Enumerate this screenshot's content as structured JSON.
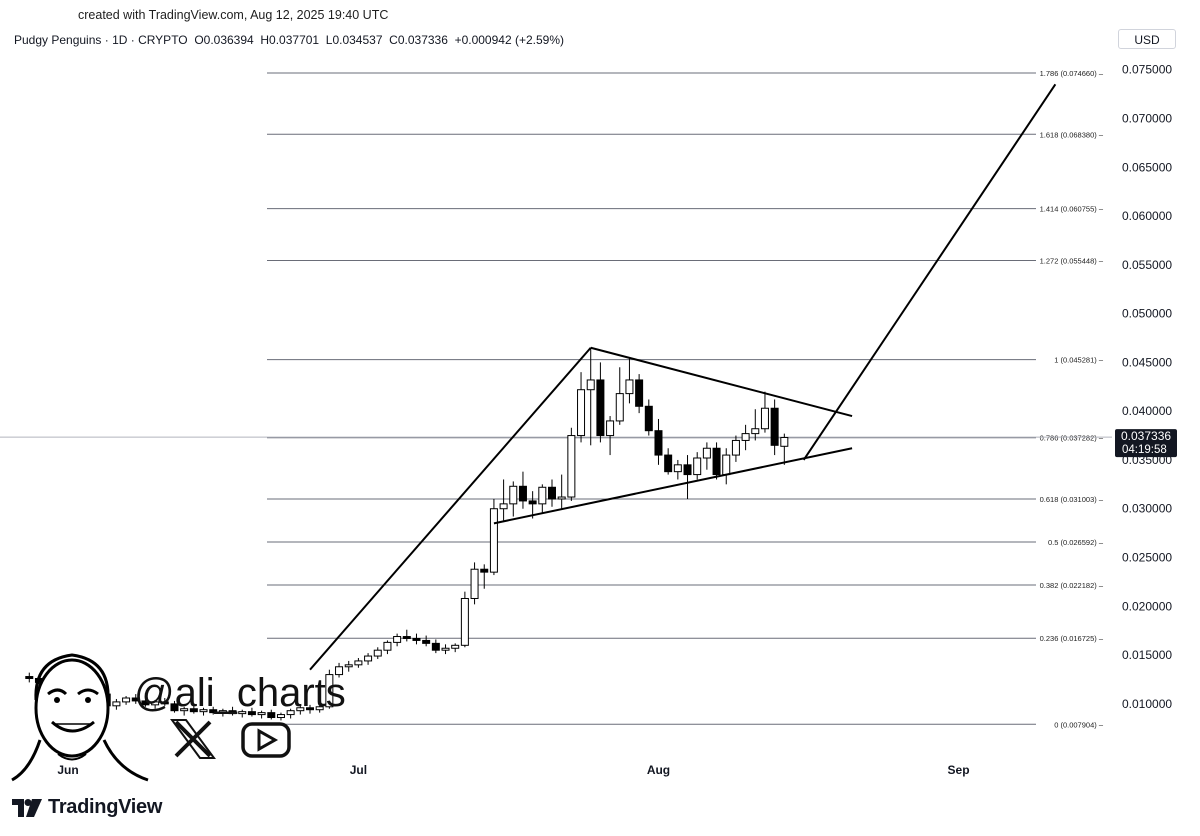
{
  "watermark": {
    "created": "created with TradingView.com, Aug 12, 2025 19:40 UTC"
  },
  "header": {
    "symbol": "Pudgy Penguins · 1D · CRYPTO",
    "open": "O0.036394",
    "high": "H0.037701",
    "low": "L0.034537",
    "close": "C0.037336",
    "change": "+0.000942 (+2.59%)"
  },
  "currency": "USD",
  "price_badge": {
    "price": "0.037336",
    "countdown": "04:19:58",
    "color": "#131722"
  },
  "author": {
    "handle": "@ali_charts"
  },
  "brand": {
    "name": "TradingView"
  },
  "colors": {
    "up": "#ffffff",
    "down": "#000000",
    "lines": "#000000",
    "grid": "#000000"
  },
  "chart_data": {
    "type": "candlestick",
    "title": "Pudgy Penguins · 1D · CRYPTO",
    "x_ticks": [
      "Jun",
      "Jul",
      "Aug",
      "Sep"
    ],
    "y_ticks": [
      "0.075000",
      "0.070000",
      "0.065000",
      "0.060000",
      "0.055000",
      "0.050000",
      "0.045000",
      "0.040000",
      "0.035000",
      "0.030000",
      "0.025000",
      "0.020000",
      "0.015000",
      "0.010000"
    ],
    "ylim": [
      0.0065,
      0.0762
    ],
    "fib_levels": [
      {
        "ratio": "1.786",
        "label": "1.786 (0.074660)",
        "value": 0.07466
      },
      {
        "ratio": "1.618",
        "label": "1.618 (0.068380)",
        "value": 0.06838
      },
      {
        "ratio": "1.414",
        "label": "1.414 (0.060755)",
        "value": 0.060755
      },
      {
        "ratio": "1.272",
        "label": "1.272 (0.055448)",
        "value": 0.055448
      },
      {
        "ratio": "1",
        "label": "1 (0.045281)",
        "value": 0.045281
      },
      {
        "ratio": "0.786",
        "label": "0.786 (0.037282)",
        "value": 0.037282
      },
      {
        "ratio": "0.618",
        "label": "0.618 (0.031003)",
        "value": 0.031003
      },
      {
        "ratio": "0.5",
        "label": "0.5 (0.026592)",
        "value": 0.026592
      },
      {
        "ratio": "0.382",
        "label": "0.382 (0.022182)",
        "value": 0.022182
      },
      {
        "ratio": "0.236",
        "label": "0.236 (0.016725)",
        "value": 0.016725
      },
      {
        "ratio": "0",
        "label": "0 (0.007904)",
        "value": 0.007904
      }
    ],
    "candles": [
      {
        "date": "2025-05-28",
        "o": 0.0128,
        "h": 0.0132,
        "l": 0.0122,
        "c": 0.0126
      },
      {
        "date": "2025-05-29",
        "o": 0.0126,
        "h": 0.013,
        "l": 0.012,
        "c": 0.0122
      },
      {
        "date": "2025-05-30",
        "o": 0.0122,
        "h": 0.0127,
        "l": 0.0118,
        "c": 0.0125
      },
      {
        "date": "2025-05-31",
        "o": 0.0125,
        "h": 0.0131,
        "l": 0.0121,
        "c": 0.0124
      },
      {
        "date": "2025-06-01",
        "o": 0.0124,
        "h": 0.0128,
        "l": 0.0116,
        "c": 0.0118
      },
      {
        "date": "2025-06-02",
        "o": 0.0118,
        "h": 0.0123,
        "l": 0.0113,
        "c": 0.0121
      },
      {
        "date": "2025-06-03",
        "o": 0.0121,
        "h": 0.0126,
        "l": 0.0115,
        "c": 0.0117
      },
      {
        "date": "2025-06-04",
        "o": 0.0117,
        "h": 0.0121,
        "l": 0.0107,
        "c": 0.011
      },
      {
        "date": "2025-06-05",
        "o": 0.011,
        "h": 0.0114,
        "l": 0.0096,
        "c": 0.0098
      },
      {
        "date": "2025-06-06",
        "o": 0.0098,
        "h": 0.0105,
        "l": 0.0094,
        "c": 0.0102
      },
      {
        "date": "2025-06-07",
        "o": 0.0102,
        "h": 0.0108,
        "l": 0.0099,
        "c": 0.0106
      },
      {
        "date": "2025-06-08",
        "o": 0.0106,
        "h": 0.011,
        "l": 0.01,
        "c": 0.0103
      },
      {
        "date": "2025-06-09",
        "o": 0.0103,
        "h": 0.0107,
        "l": 0.0097,
        "c": 0.0099
      },
      {
        "date": "2025-06-10",
        "o": 0.0099,
        "h": 0.0104,
        "l": 0.0095,
        "c": 0.0102
      },
      {
        "date": "2025-06-11",
        "o": 0.0102,
        "h": 0.0106,
        "l": 0.0098,
        "c": 0.01
      },
      {
        "date": "2025-06-12",
        "o": 0.01,
        "h": 0.0103,
        "l": 0.0091,
        "c": 0.0093
      },
      {
        "date": "2025-06-13",
        "o": 0.0093,
        "h": 0.0097,
        "l": 0.0088,
        "c": 0.0095
      },
      {
        "date": "2025-06-14",
        "o": 0.0095,
        "h": 0.0099,
        "l": 0.009,
        "c": 0.0092
      },
      {
        "date": "2025-06-15",
        "o": 0.0092,
        "h": 0.0096,
        "l": 0.0088,
        "c": 0.0094
      },
      {
        "date": "2025-06-16",
        "o": 0.0094,
        "h": 0.0097,
        "l": 0.0089,
        "c": 0.0091
      },
      {
        "date": "2025-06-17",
        "o": 0.0091,
        "h": 0.0095,
        "l": 0.0087,
        "c": 0.0093
      },
      {
        "date": "2025-06-18",
        "o": 0.0093,
        "h": 0.0097,
        "l": 0.0088,
        "c": 0.009
      },
      {
        "date": "2025-06-19",
        "o": 0.009,
        "h": 0.0094,
        "l": 0.0086,
        "c": 0.0092
      },
      {
        "date": "2025-06-20",
        "o": 0.0092,
        "h": 0.0096,
        "l": 0.0087,
        "c": 0.0089
      },
      {
        "date": "2025-06-21",
        "o": 0.0089,
        "h": 0.0093,
        "l": 0.0085,
        "c": 0.0091
      },
      {
        "date": "2025-06-22",
        "o": 0.0091,
        "h": 0.0094,
        "l": 0.0084,
        "c": 0.0086
      },
      {
        "date": "2025-06-23",
        "o": 0.0086,
        "h": 0.0091,
        "l": 0.0083,
        "c": 0.0089
      },
      {
        "date": "2025-06-24",
        "o": 0.0089,
        "h": 0.0095,
        "l": 0.0085,
        "c": 0.0093
      },
      {
        "date": "2025-06-25",
        "o": 0.0093,
        "h": 0.0098,
        "l": 0.0089,
        "c": 0.0096
      },
      {
        "date": "2025-06-26",
        "o": 0.0096,
        "h": 0.0099,
        "l": 0.009,
        "c": 0.0094
      },
      {
        "date": "2025-06-27",
        "o": 0.0094,
        "h": 0.0098,
        "l": 0.0091,
        "c": 0.0097
      },
      {
        "date": "2025-06-28",
        "o": 0.0097,
        "h": 0.0135,
        "l": 0.0095,
        "c": 0.013
      },
      {
        "date": "2025-06-29",
        "o": 0.013,
        "h": 0.0142,
        "l": 0.0127,
        "c": 0.0138
      },
      {
        "date": "2025-06-30",
        "o": 0.0138,
        "h": 0.0144,
        "l": 0.0133,
        "c": 0.014
      },
      {
        "date": "2025-07-01",
        "o": 0.014,
        "h": 0.0147,
        "l": 0.0137,
        "c": 0.0144
      },
      {
        "date": "2025-07-02",
        "o": 0.0144,
        "h": 0.0152,
        "l": 0.014,
        "c": 0.0149
      },
      {
        "date": "2025-07-03",
        "o": 0.0149,
        "h": 0.0158,
        "l": 0.0146,
        "c": 0.0155
      },
      {
        "date": "2025-07-04",
        "o": 0.0155,
        "h": 0.0165,
        "l": 0.0151,
        "c": 0.0163
      },
      {
        "date": "2025-07-05",
        "o": 0.0163,
        "h": 0.0172,
        "l": 0.0159,
        "c": 0.0169
      },
      {
        "date": "2025-07-06",
        "o": 0.0169,
        "h": 0.0176,
        "l": 0.0164,
        "c": 0.0167
      },
      {
        "date": "2025-07-07",
        "o": 0.0167,
        "h": 0.0172,
        "l": 0.0161,
        "c": 0.0165
      },
      {
        "date": "2025-07-08",
        "o": 0.0165,
        "h": 0.017,
        "l": 0.0159,
        "c": 0.0162
      },
      {
        "date": "2025-07-09",
        "o": 0.0162,
        "h": 0.0166,
        "l": 0.0152,
        "c": 0.0155
      },
      {
        "date": "2025-07-10",
        "o": 0.0155,
        "h": 0.0161,
        "l": 0.0151,
        "c": 0.0157
      },
      {
        "date": "2025-07-11",
        "o": 0.0157,
        "h": 0.0162,
        "l": 0.0153,
        "c": 0.016
      },
      {
        "date": "2025-07-12",
        "o": 0.016,
        "h": 0.0215,
        "l": 0.0158,
        "c": 0.0208
      },
      {
        "date": "2025-07-13",
        "o": 0.0208,
        "h": 0.0245,
        "l": 0.0202,
        "c": 0.0238
      },
      {
        "date": "2025-07-14",
        "o": 0.0238,
        "h": 0.0243,
        "l": 0.0218,
        "c": 0.0235
      },
      {
        "date": "2025-07-15",
        "o": 0.0235,
        "h": 0.031,
        "l": 0.0232,
        "c": 0.03
      },
      {
        "date": "2025-07-16",
        "o": 0.03,
        "h": 0.033,
        "l": 0.0288,
        "c": 0.0305
      },
      {
        "date": "2025-07-17",
        "o": 0.0305,
        "h": 0.0328,
        "l": 0.0292,
        "c": 0.0323
      },
      {
        "date": "2025-07-18",
        "o": 0.0323,
        "h": 0.0338,
        "l": 0.03,
        "c": 0.0308
      },
      {
        "date": "2025-07-19",
        "o": 0.0308,
        "h": 0.0318,
        "l": 0.029,
        "c": 0.0305
      },
      {
        "date": "2025-07-20",
        "o": 0.0305,
        "h": 0.0325,
        "l": 0.0295,
        "c": 0.0322
      },
      {
        "date": "2025-07-21",
        "o": 0.0322,
        "h": 0.033,
        "l": 0.0302,
        "c": 0.031
      },
      {
        "date": "2025-07-22",
        "o": 0.031,
        "h": 0.0335,
        "l": 0.03,
        "c": 0.0312
      },
      {
        "date": "2025-07-23",
        "o": 0.0312,
        "h": 0.0383,
        "l": 0.0308,
        "c": 0.0375
      },
      {
        "date": "2025-07-24",
        "o": 0.0375,
        "h": 0.044,
        "l": 0.0368,
        "c": 0.0422
      },
      {
        "date": "2025-07-25",
        "o": 0.0422,
        "h": 0.0465,
        "l": 0.0365,
        "c": 0.0432
      },
      {
        "date": "2025-07-26",
        "o": 0.0432,
        "h": 0.045,
        "l": 0.0368,
        "c": 0.0375
      },
      {
        "date": "2025-07-27",
        "o": 0.0375,
        "h": 0.0395,
        "l": 0.0355,
        "c": 0.039
      },
      {
        "date": "2025-07-28",
        "o": 0.039,
        "h": 0.0445,
        "l": 0.0386,
        "c": 0.0418
      },
      {
        "date": "2025-07-29",
        "o": 0.0418,
        "h": 0.0455,
        "l": 0.0408,
        "c": 0.0432
      },
      {
        "date": "2025-07-30",
        "o": 0.0432,
        "h": 0.0438,
        "l": 0.0398,
        "c": 0.0405
      },
      {
        "date": "2025-07-31",
        "o": 0.0405,
        "h": 0.0412,
        "l": 0.0375,
        "c": 0.038
      },
      {
        "date": "2025-08-01",
        "o": 0.038,
        "h": 0.0392,
        "l": 0.0345,
        "c": 0.0355
      },
      {
        "date": "2025-08-02",
        "o": 0.0355,
        "h": 0.0362,
        "l": 0.0335,
        "c": 0.0338
      },
      {
        "date": "2025-08-03",
        "o": 0.0338,
        "h": 0.035,
        "l": 0.033,
        "c": 0.0345
      },
      {
        "date": "2025-08-04",
        "o": 0.0345,
        "h": 0.0355,
        "l": 0.031,
        "c": 0.0335
      },
      {
        "date": "2025-08-05",
        "o": 0.0335,
        "h": 0.0358,
        "l": 0.033,
        "c": 0.0352
      },
      {
        "date": "2025-08-06",
        "o": 0.0352,
        "h": 0.0368,
        "l": 0.034,
        "c": 0.0362
      },
      {
        "date": "2025-08-07",
        "o": 0.0362,
        "h": 0.0368,
        "l": 0.033,
        "c": 0.0335
      },
      {
        "date": "2025-08-08",
        "o": 0.0335,
        "h": 0.0362,
        "l": 0.0325,
        "c": 0.0355
      },
      {
        "date": "2025-08-09",
        "o": 0.0355,
        "h": 0.0375,
        "l": 0.0348,
        "c": 0.037
      },
      {
        "date": "2025-08-10",
        "o": 0.037,
        "h": 0.0386,
        "l": 0.036,
        "c": 0.0377
      },
      {
        "date": "2025-08-11",
        "o": 0.0377,
        "h": 0.0402,
        "l": 0.037,
        "c": 0.0382
      },
      {
        "date": "2025-08-12",
        "o": 0.0382,
        "h": 0.042,
        "l": 0.0378,
        "c": 0.0403
      },
      {
        "date": "2025-08-13",
        "o": 0.0403,
        "h": 0.0412,
        "l": 0.0355,
        "c": 0.0365
      },
      {
        "date": "2025-08-14",
        "o": 0.0364,
        "h": 0.0377,
        "l": 0.0345,
        "c": 0.0373
      }
    ],
    "trendlines": [
      {
        "name": "pole",
        "from": {
          "date": "2025-06-26",
          "price": 0.0135
        },
        "to": {
          "date": "2025-07-25",
          "price": 0.0465
        }
      },
      {
        "name": "upper",
        "from": {
          "date": "2025-07-25",
          "price": 0.0465
        },
        "to": {
          "date": "2025-08-21",
          "price": 0.0395
        }
      },
      {
        "name": "lower",
        "from": {
          "date": "2025-07-15",
          "price": 0.0285
        },
        "to": {
          "date": "2025-08-21",
          "price": 0.0362
        }
      },
      {
        "name": "target",
        "from": {
          "date": "2025-08-16",
          "price": 0.035
        },
        "to": {
          "date": "2025-09-11",
          "price": 0.0735
        }
      }
    ]
  }
}
